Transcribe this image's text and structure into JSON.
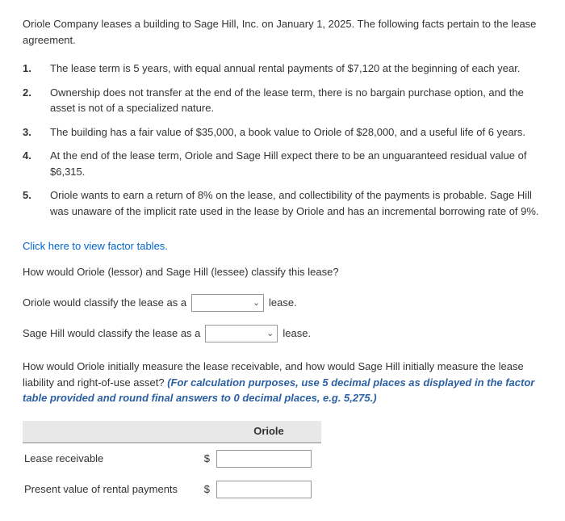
{
  "intro": "Oriole Company leases a building to Sage Hill, Inc. on January 1, 2025. The following facts pertain to the lease agreement.",
  "facts": [
    {
      "num": "1.",
      "text": "The lease term is 5 years, with equal annual rental payments of $7,120 at the beginning of each year."
    },
    {
      "num": "2.",
      "text": "Ownership does not transfer at the end of the lease term, there is no bargain purchase option, and the asset is not of a specialized nature."
    },
    {
      "num": "3.",
      "text": "The building has a fair value of $35,000, a book value to Oriole of $28,000, and a useful life of 6 years."
    },
    {
      "num": "4.",
      "text": "At the end of the lease term, Oriole and Sage Hill expect there to be an unguaranteed residual value of $6,315."
    },
    {
      "num": "5.",
      "text": "Oriole wants to earn a return of 8% on the lease, and collectibility of the payments is probable. Sage Hill was unaware of the implicit rate used in the lease by Oriole and has an incremental borrowing rate of 9%."
    }
  ],
  "linkText": "Click here to view factor tables.",
  "question1": "How would Oriole (lessor) and Sage Hill (lessee) classify this lease?",
  "classify": {
    "orioleLabel": "Oriole would classify the lease as a",
    "sageLabel": "Sage Hill would classify the lease as a",
    "afterText": "lease."
  },
  "question2a": "How would Oriole initially measure the lease receivable, and how would Sage Hill initially measure the lease liability and right-of-use asset? ",
  "question2b": "(For calculation purposes, use 5 decimal places as displayed in the factor table provided and round final answers to 0 decimal places, e.g. 5,275.)",
  "table": {
    "header": "Oriole",
    "rows": [
      {
        "label": "Lease receivable",
        "dollar": "$"
      },
      {
        "label": "Present value of rental payments",
        "dollar": "$"
      }
    ]
  }
}
